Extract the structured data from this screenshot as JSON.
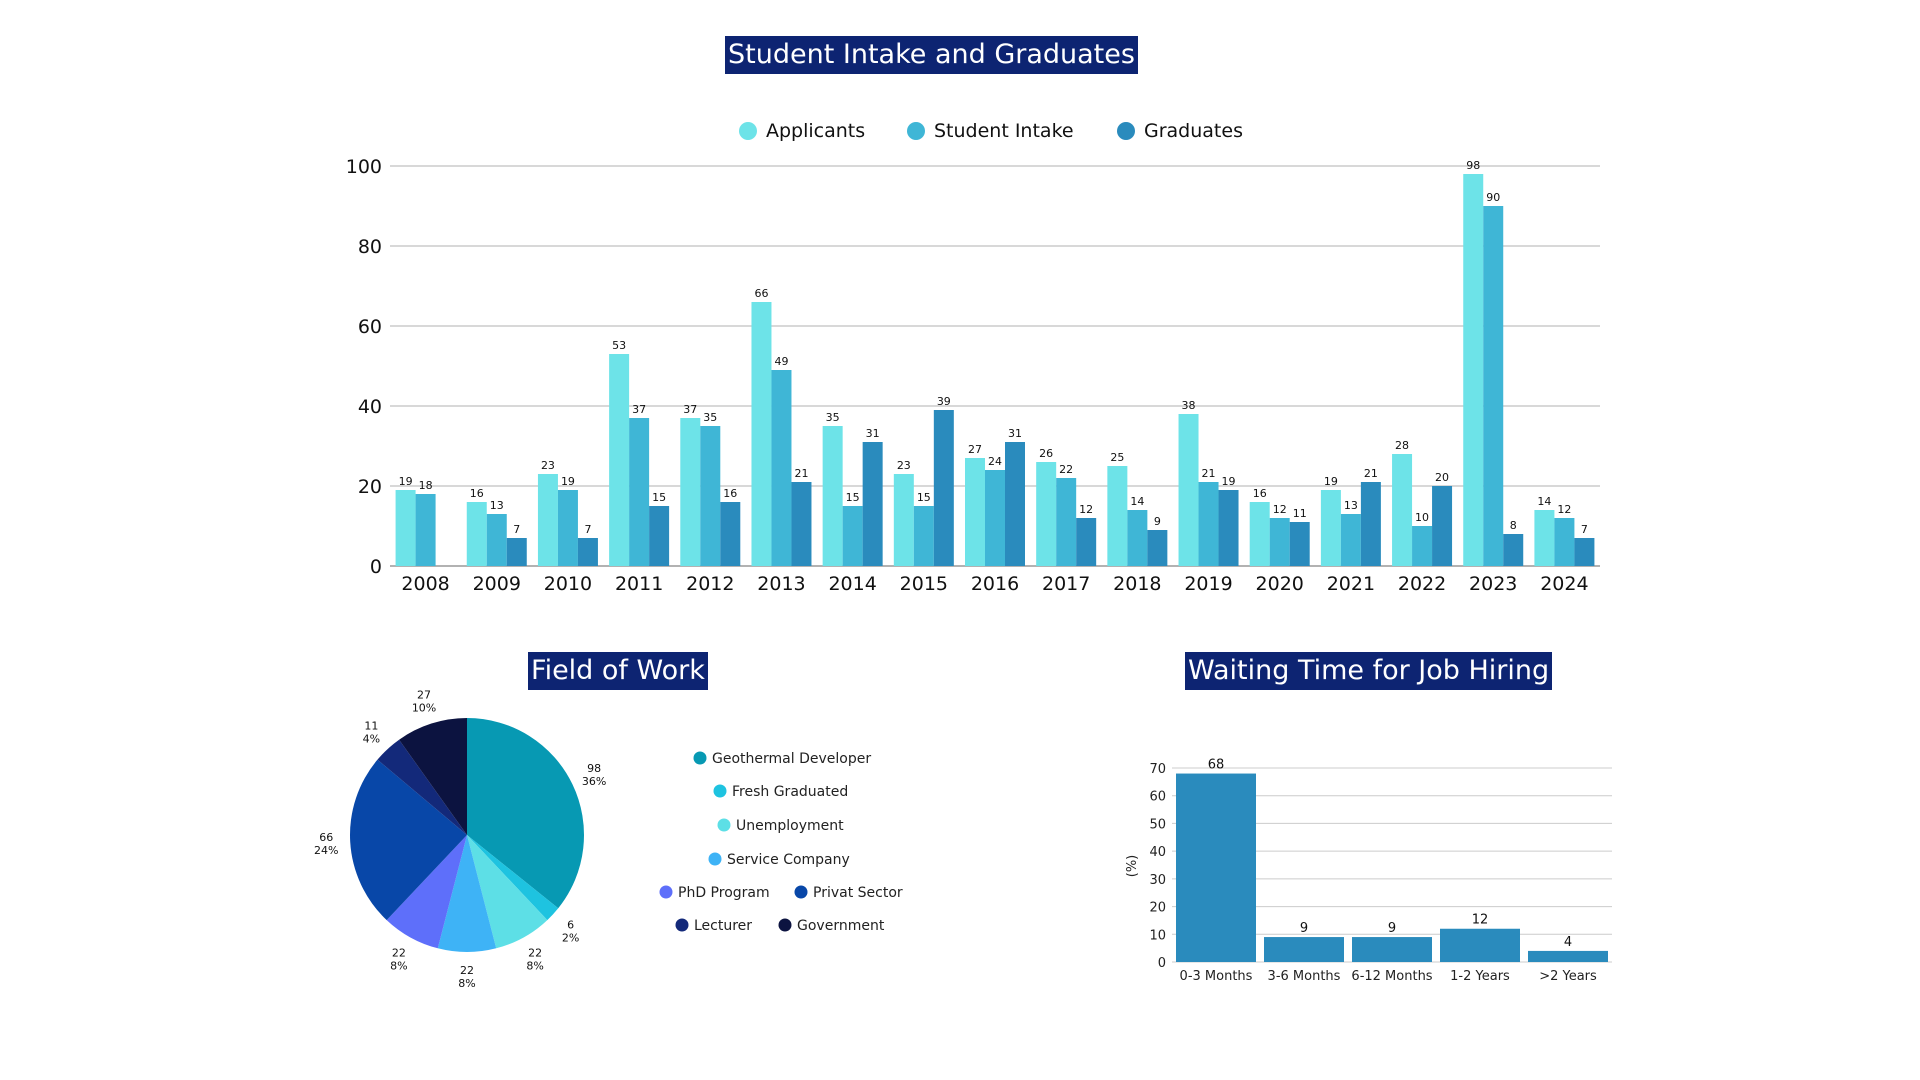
{
  "colors": {
    "title_bg": "#0d2472",
    "applicants": "#6de3e8",
    "student_intake": "#3fb6d6",
    "graduates": "#2a8bbd",
    "waiting_bar": "#2a8bbd",
    "grid": "#cccccc"
  },
  "chart_data": [
    {
      "type": "bar",
      "title": "Student Intake and Graduates",
      "categories": [
        "2008",
        "2009",
        "2010",
        "2011",
        "2012",
        "2013",
        "2014",
        "2015",
        "2016",
        "2017",
        "2018",
        "2019",
        "2020",
        "2021",
        "2022",
        "2023",
        "2024"
      ],
      "series": [
        {
          "name": "Applicants",
          "values": [
            19,
            16,
            23,
            53,
            37,
            66,
            35,
            23,
            27,
            26,
            25,
            38,
            16,
            19,
            28,
            98,
            14
          ]
        },
        {
          "name": "Student Intake",
          "values": [
            18,
            13,
            19,
            37,
            35,
            49,
            15,
            15,
            24,
            22,
            14,
            21,
            12,
            13,
            10,
            90,
            12
          ]
        },
        {
          "name": "Graduates",
          "values": [
            0,
            7,
            7,
            15,
            16,
            21,
            31,
            39,
            31,
            12,
            9,
            19,
            11,
            21,
            20,
            8,
            7
          ]
        }
      ],
      "ylim": [
        0,
        100
      ],
      "yticks": [
        0,
        20,
        40,
        60,
        80,
        100
      ],
      "legend": "top-center",
      "grid": true
    },
    {
      "type": "pie",
      "title": "Field of Work",
      "slices": [
        {
          "label": "Geothermal Developer",
          "value": 98,
          "percent": "36%",
          "color": "#0799b3"
        },
        {
          "label": "Fresh Graduated",
          "value": 6,
          "percent": "2%",
          "color": "#1ec3e0"
        },
        {
          "label": "Unemployment",
          "value": 22,
          "percent": "8%",
          "color": "#5ddfe6"
        },
        {
          "label": "Service Company",
          "value": 22,
          "percent": "8%",
          "color": "#3eb3f6"
        },
        {
          "label": "PhD Program",
          "value": 22,
          "percent": "8%",
          "color": "#5e6ffa"
        },
        {
          "label": "Privat Sector",
          "value": 66,
          "percent": "24%",
          "color": "#0847a8"
        },
        {
          "label": "Lecturer",
          "value": 11,
          "percent": "4%",
          "color": "#13297a"
        },
        {
          "label": "Government",
          "value": 27,
          "percent": "10%",
          "color": "#0c1340"
        }
      ],
      "legend": "right"
    },
    {
      "type": "bar",
      "title": "Waiting Time for Job Hiring",
      "categories": [
        "0-3 Months",
        "3-6 Months",
        "6-12 Months",
        "1-2 Years",
        ">2 Years"
      ],
      "values": [
        68,
        9,
        9,
        12,
        4
      ],
      "ylabel": "(%)",
      "ylim": [
        0,
        70
      ],
      "yticks": [
        0,
        10,
        20,
        30,
        40,
        50,
        60,
        70
      ],
      "grid": true
    }
  ]
}
